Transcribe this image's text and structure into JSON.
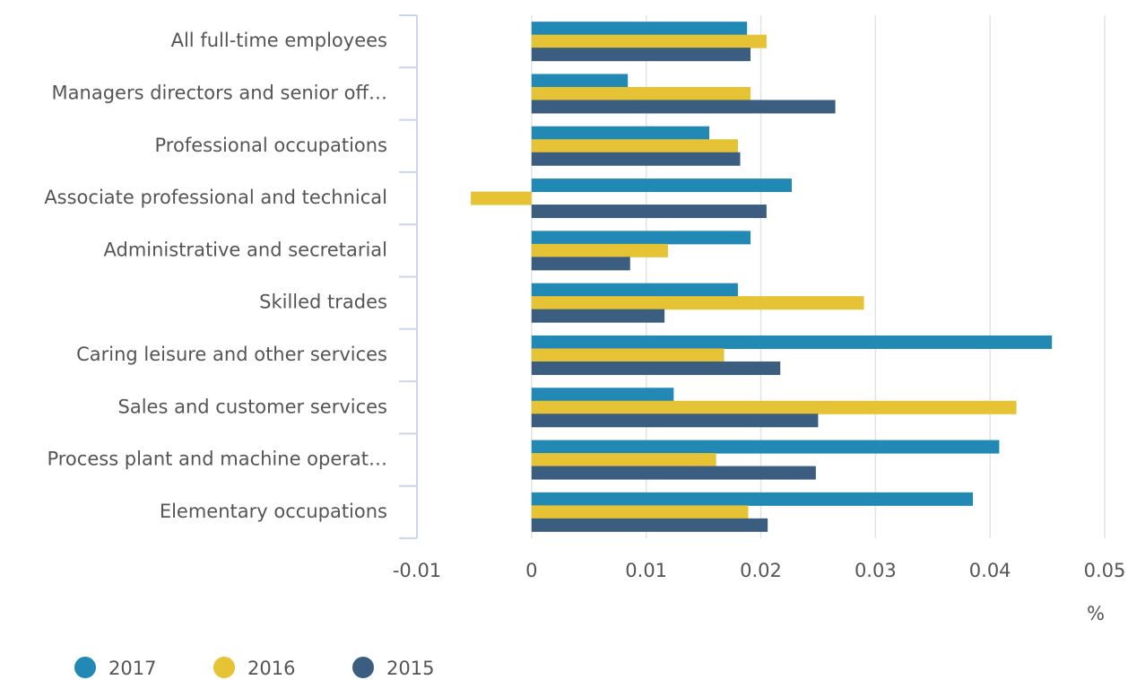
{
  "chart_data": {
    "type": "bar",
    "orientation": "horizontal",
    "x_label": "%",
    "categories": [
      "All full-time employees",
      "Managers directors and senior off…",
      "Professional occupations",
      "Associate professional and technical",
      "Administrative and secretarial",
      "Skilled trades",
      "Caring leisure and other services",
      "Sales and customer services",
      "Process plant and machine operat…",
      "Elementary occupations"
    ],
    "series": [
      {
        "name": "2017",
        "color": "#2288b4",
        "values": [
          0.0188,
          0.0084,
          0.0155,
          0.0227,
          0.0191,
          0.018,
          0.0454,
          0.0124,
          0.0408,
          0.0385
        ]
      },
      {
        "name": "2016",
        "color": "#e5c334",
        "values": [
          0.0205,
          0.0191,
          0.018,
          -0.0053,
          0.0119,
          0.029,
          0.0168,
          0.0423,
          0.0161,
          0.0189
        ]
      },
      {
        "name": "2015",
        "color": "#3b5e80",
        "values": [
          0.0191,
          0.0265,
          0.0182,
          0.0205,
          0.0086,
          0.0116,
          0.0217,
          0.025,
          0.0248,
          0.0206
        ]
      }
    ],
    "xlim": [
      -0.01,
      0.05
    ],
    "xticks": [
      -0.01,
      0,
      0.01,
      0.02,
      0.03,
      0.04,
      0.05
    ],
    "grid": true,
    "legend": "bottom-left"
  }
}
